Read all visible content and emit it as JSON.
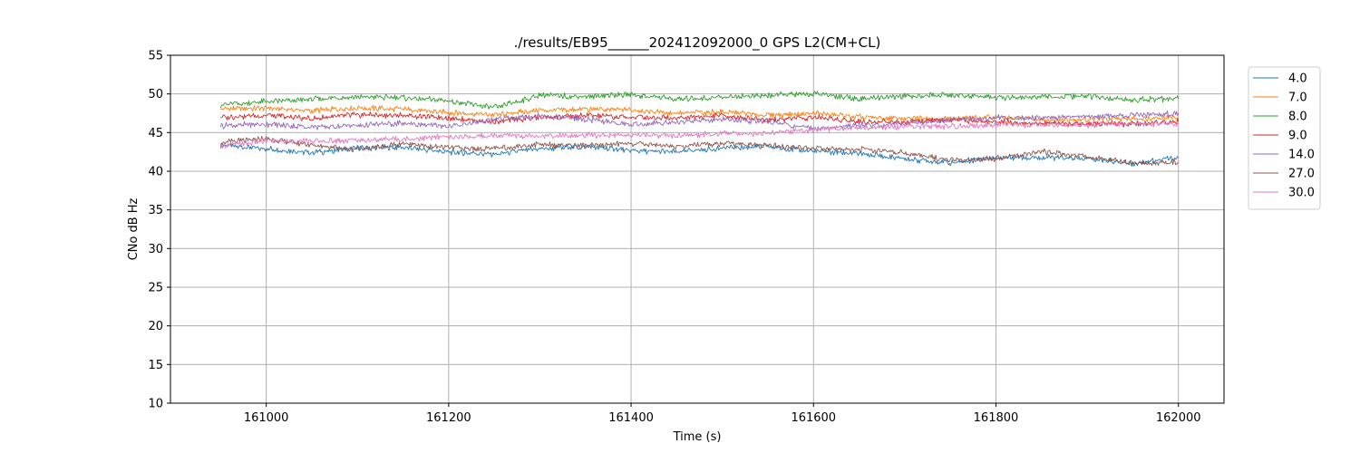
{
  "chart_data": {
    "type": "line",
    "title": "./results/EB95______202412092000_0 GPS L2(CM+CL)",
    "xlabel": "Time (s)",
    "ylabel": "CNo dB Hz",
    "xlim": [
      160895,
      162050
    ],
    "ylim": [
      10,
      55
    ],
    "x_ticks": [
      161000,
      161200,
      161400,
      161600,
      161800,
      162000
    ],
    "y_ticks": [
      10,
      15,
      20,
      25,
      30,
      35,
      40,
      45,
      50,
      55
    ],
    "grid": true,
    "legend_position": "outside-right",
    "x": [
      160950,
      161000,
      161050,
      161100,
      161150,
      161200,
      161250,
      161300,
      161350,
      161400,
      161450,
      161500,
      161550,
      161600,
      161650,
      161700,
      161750,
      161800,
      161850,
      161900,
      161950,
      162000
    ],
    "series": [
      {
        "name": "4.0",
        "color": "#1f77b4",
        "values": [
          43.4,
          42.9,
          42.4,
          43.0,
          43.1,
          42.5,
          42.2,
          42.9,
          43.2,
          42.7,
          42.5,
          43.0,
          43.2,
          42.6,
          42.3,
          41.6,
          41.1,
          41.8,
          41.8,
          41.6,
          41.0,
          41.8
        ]
      },
      {
        "name": "7.0",
        "color": "#ff7f0e",
        "values": [
          48.1,
          48.2,
          47.8,
          48.2,
          48.0,
          47.6,
          47.3,
          47.9,
          48.0,
          47.9,
          47.5,
          47.7,
          47.2,
          47.5,
          47.0,
          46.8,
          46.8,
          47.0,
          46.7,
          46.7,
          46.8,
          47.0
        ]
      },
      {
        "name": "8.0",
        "color": "#2ca02c",
        "values": [
          48.6,
          49.0,
          49.3,
          49.6,
          49.5,
          49.1,
          48.2,
          49.8,
          49.7,
          49.9,
          49.3,
          49.6,
          49.8,
          50.0,
          49.4,
          49.7,
          49.9,
          49.5,
          49.6,
          49.7,
          49.2,
          49.4
        ]
      },
      {
        "name": "9.0",
        "color": "#d62728",
        "values": [
          47.0,
          47.2,
          46.8,
          47.3,
          47.2,
          46.9,
          46.4,
          47.0,
          47.2,
          47.0,
          46.9,
          47.2,
          46.6,
          47.0,
          46.4,
          46.4,
          46.6,
          46.4,
          46.2,
          46.2,
          46.1,
          46.4
        ]
      },
      {
        "name": "14.0",
        "color": "#9467bd",
        "values": [
          45.9,
          46.1,
          45.7,
          45.9,
          46.2,
          45.8,
          46.7,
          47.2,
          46.7,
          46.0,
          46.4,
          46.7,
          46.4,
          45.5,
          45.9,
          46.2,
          46.6,
          46.9,
          46.9,
          47.1,
          47.2,
          47.5
        ]
      },
      {
        "name": "27.0",
        "color": "#8c564b",
        "values": [
          43.7,
          44.2,
          43.4,
          42.8,
          43.6,
          43.0,
          42.9,
          43.5,
          43.3,
          43.6,
          43.2,
          43.6,
          43.3,
          43.0,
          42.8,
          42.4,
          41.4,
          41.6,
          42.5,
          41.9,
          41.0,
          41.2
        ]
      },
      {
        "name": "30.0",
        "color": "#e377c2",
        "values": [
          43.3,
          43.9,
          43.9,
          44.0,
          44.2,
          44.4,
          44.6,
          44.6,
          44.6,
          44.7,
          44.6,
          44.9,
          44.9,
          45.4,
          45.6,
          45.8,
          45.8,
          46.0,
          46.0,
          45.9,
          46.2,
          46.1
        ]
      }
    ]
  }
}
